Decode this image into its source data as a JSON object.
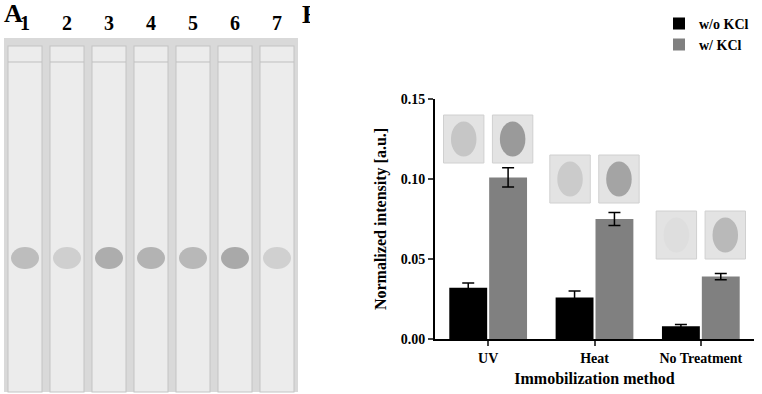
{
  "figure_labels": [
    "A",
    "B"
  ],
  "strips": {
    "labels": [
      "1",
      "2",
      "3",
      "4",
      "5",
      "6",
      "7"
    ]
  },
  "chart_data": {
    "type": "bar",
    "x_label": "Immobilization method",
    "y_label": "Normalized intensity [a.u.]",
    "categories": [
      "UV",
      "Heat",
      "No Treatment"
    ],
    "series": [
      {
        "name": "w/o KCl",
        "color": "#000000",
        "values": [
          0.032,
          0.026,
          0.008
        ],
        "errors": [
          0.003,
          0.004,
          0.001
        ]
      },
      {
        "name": "w/ KCl",
        "color": "#808080",
        "values": [
          0.101,
          0.075,
          0.039
        ],
        "errors": [
          0.006,
          0.004,
          0.002
        ]
      }
    ],
    "ylim": [
      0,
      0.15
    ],
    "yticks": [
      {
        "value": 0,
        "label": "0.00"
      },
      {
        "value": 0.05,
        "label": "0.05"
      },
      {
        "value": 0.1,
        "label": "0.10"
      },
      {
        "value": 0.15,
        "label": "0.15"
      }
    ],
    "grid": false,
    "legend": "upper right"
  }
}
